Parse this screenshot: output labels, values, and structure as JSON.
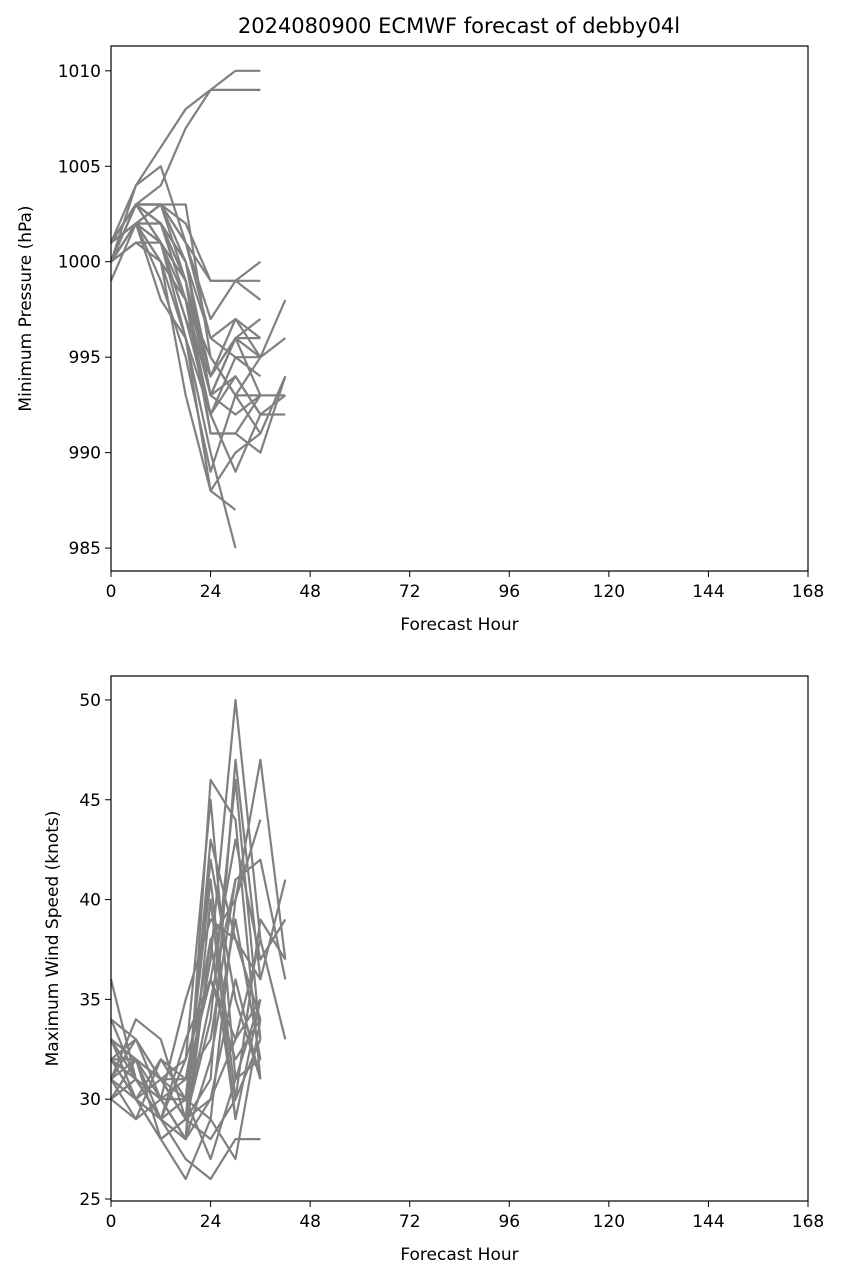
{
  "title": "2024080900 ECMWF forecast of debby04l",
  "chart_data": [
    {
      "type": "line",
      "xlabel": "Forecast Hour",
      "ylabel": "Minimum Pressure (hPa)",
      "xlim": [
        0,
        168
      ],
      "ylim": [
        983.8,
        1011.3
      ],
      "xticks": [
        0,
        24,
        48,
        72,
        96,
        120,
        144,
        168
      ],
      "yticks": [
        985,
        990,
        995,
        1000,
        1005,
        1010
      ],
      "grid": false,
      "line_color": "#808080",
      "series": [
        {
          "x": [
            0,
            6,
            12,
            18,
            24,
            30,
            36
          ],
          "y": [
            1001,
            1004,
            1006,
            1008,
            1009,
            1010,
            1010
          ]
        },
        {
          "x": [
            0,
            6,
            12,
            18,
            24,
            30,
            36
          ],
          "y": [
            1000,
            1003,
            1004,
            1007,
            1009,
            1009,
            1009
          ]
        },
        {
          "x": [
            0,
            6,
            12,
            18,
            24,
            30,
            36
          ],
          "y": [
            1000,
            1004,
            1005,
            1001,
            999,
            999,
            999
          ]
        },
        {
          "x": [
            0,
            6,
            12,
            18,
            24,
            30,
            36
          ],
          "y": [
            1001,
            1003,
            1003,
            1001,
            997,
            999,
            1000
          ]
        },
        {
          "x": [
            0,
            6,
            12,
            18,
            24,
            30,
            36
          ],
          "y": [
            1000,
            1002,
            1003,
            1002,
            999,
            999,
            998
          ]
        },
        {
          "x": [
            0,
            6,
            12,
            18,
            24,
            30,
            36,
            42
          ],
          "y": [
            1001,
            1003,
            1003,
            1001,
            996,
            997,
            995,
            998
          ]
        },
        {
          "x": [
            0,
            6,
            12,
            18,
            24,
            30,
            36,
            42
          ],
          "y": [
            1000,
            1002,
            1002,
            1000,
            994,
            996,
            995,
            996
          ]
        },
        {
          "x": [
            0,
            6,
            12,
            18,
            24,
            30,
            36,
            42
          ],
          "y": [
            1001,
            1003,
            1002,
            999,
            993,
            994,
            992,
            993
          ]
        },
        {
          "x": [
            0,
            6,
            12,
            18,
            24,
            30,
            36,
            42
          ],
          "y": [
            1000,
            1002,
            1003,
            1003,
            995,
            993,
            991,
            994
          ]
        },
        {
          "x": [
            0,
            6,
            12,
            18,
            24,
            30,
            36,
            42
          ],
          "y": [
            1001,
            1002,
            1002,
            998,
            992,
            994,
            992,
            992
          ]
        },
        {
          "x": [
            0,
            6,
            12,
            18,
            24,
            30,
            36,
            42
          ],
          "y": [
            999,
            1002,
            1001,
            999,
            993,
            996,
            993,
            993
          ]
        },
        {
          "x": [
            0,
            6,
            12,
            18,
            24,
            30,
            36,
            42
          ],
          "y": [
            1000,
            1003,
            1002,
            999,
            991,
            991,
            990,
            994
          ]
        },
        {
          "x": [
            0,
            6,
            12,
            18,
            24,
            30,
            36
          ],
          "y": [
            1001,
            1003,
            1003,
            1000,
            993,
            996,
            997
          ]
        },
        {
          "x": [
            0,
            6,
            12,
            18,
            24,
            30,
            36
          ],
          "y": [
            1000,
            1002,
            1001,
            997,
            994,
            997,
            996
          ]
        },
        {
          "x": [
            0,
            6,
            12,
            18,
            24,
            30,
            36
          ],
          "y": [
            1001,
            1003,
            1002,
            1000,
            996,
            995,
            994
          ]
        },
        {
          "x": [
            0,
            6,
            12,
            18,
            24,
            30,
            36
          ],
          "y": [
            1000,
            1002,
            998,
            996,
            992,
            995,
            995
          ]
        },
        {
          "x": [
            0,
            6,
            12,
            18,
            24,
            30,
            36
          ],
          "y": [
            1000,
            1002,
            1000,
            998,
            993,
            992,
            993
          ]
        },
        {
          "x": [
            0,
            6,
            12,
            18,
            24,
            30,
            36
          ],
          "y": [
            1001,
            1003,
            1001,
            997,
            992,
            989,
            992
          ]
        },
        {
          "x": [
            0,
            6,
            12,
            18,
            24,
            30,
            36
          ],
          "y": [
            1000,
            1001,
            1000,
            993,
            988,
            990,
            991
          ]
        },
        {
          "x": [
            0,
            6,
            12,
            18,
            24,
            30,
            36
          ],
          "y": [
            1000,
            1002,
            999,
            995,
            989,
            993,
            995
          ]
        },
        {
          "x": [
            0,
            6,
            12,
            18,
            24,
            30
          ],
          "y": [
            1001,
            1002,
            1000,
            996,
            988,
            987
          ]
        },
        {
          "x": [
            0,
            6,
            12,
            18,
            24,
            30
          ],
          "y": [
            1000,
            1001,
            1001,
            996,
            990,
            985
          ]
        },
        {
          "x": [
            0,
            6,
            12,
            18,
            24,
            30,
            36
          ],
          "y": [
            1000,
            1003,
            1002,
            998,
            991,
            991,
            993
          ]
        },
        {
          "x": [
            0,
            6,
            12,
            18,
            24,
            30,
            36
          ],
          "y": [
            1001,
            1002,
            1003,
            999,
            994,
            996,
            996
          ]
        },
        {
          "x": [
            0,
            6,
            12,
            18,
            24,
            30,
            36
          ],
          "y": [
            1000,
            1003,
            1001,
            998,
            995,
            993,
            993
          ]
        }
      ]
    },
    {
      "type": "line",
      "xlabel": "Forecast Hour",
      "ylabel": "Maximum Wind Speed (knots)",
      "xlim": [
        0,
        168
      ],
      "ylim": [
        24.9,
        51.2
      ],
      "xticks": [
        0,
        24,
        48,
        72,
        96,
        120,
        144,
        168
      ],
      "yticks": [
        25,
        30,
        35,
        40,
        45,
        50
      ],
      "grid": false,
      "line_color": "#808080",
      "series": [
        {
          "x": [
            0,
            6,
            12,
            18,
            24,
            30,
            36
          ],
          "y": [
            36,
            31,
            29,
            28,
            46,
            44,
            31
          ]
        },
        {
          "x": [
            0,
            6,
            12,
            18,
            24,
            30,
            36
          ],
          "y": [
            34,
            33,
            31,
            29,
            43,
            38,
            34
          ]
        },
        {
          "x": [
            0,
            6,
            12,
            18,
            24,
            30,
            36
          ],
          "y": [
            32,
            30,
            29,
            30,
            37,
            50,
            38
          ]
        },
        {
          "x": [
            0,
            6,
            12,
            18,
            24,
            30,
            36
          ],
          "y": [
            31,
            34,
            33,
            29,
            31,
            47,
            36
          ]
        },
        {
          "x": [
            0,
            6,
            12,
            18,
            24,
            30,
            36,
            42
          ],
          "y": [
            33,
            32,
            28,
            26,
            29,
            40,
            47,
            37
          ]
        },
        {
          "x": [
            0,
            6,
            12,
            18,
            24,
            30,
            36,
            42
          ],
          "y": [
            30,
            31,
            30,
            35,
            39,
            38,
            36,
            41
          ]
        },
        {
          "x": [
            0,
            6,
            12,
            18,
            24,
            30,
            36,
            42
          ],
          "y": [
            31,
            29,
            32,
            31,
            36,
            43,
            37,
            39
          ]
        },
        {
          "x": [
            0,
            6,
            12,
            18,
            24,
            30,
            36,
            42
          ],
          "y": [
            32,
            33,
            30,
            28,
            30,
            33,
            38,
            33
          ]
        },
        {
          "x": [
            0,
            6,
            12,
            18,
            24,
            30,
            36,
            42
          ],
          "y": [
            30,
            32,
            31,
            29,
            35,
            41,
            42,
            36
          ]
        },
        {
          "x": [
            0,
            6,
            12,
            18,
            24,
            30,
            36,
            42
          ],
          "y": [
            33,
            31,
            29,
            30,
            41,
            30,
            39,
            37
          ]
        },
        {
          "x": [
            0,
            6,
            12,
            18,
            24,
            30,
            36
          ],
          "y": [
            31,
            30,
            31,
            32,
            45,
            31,
            32
          ]
        },
        {
          "x": [
            0,
            6,
            12,
            18,
            24,
            30,
            36
          ],
          "y": [
            32,
            32,
            30,
            28,
            40,
            29,
            35
          ]
        },
        {
          "x": [
            0,
            6,
            12,
            18,
            24,
            30,
            36
          ],
          "y": [
            30,
            31,
            29,
            27,
            26,
            28,
            28
          ]
        },
        {
          "x": [
            0,
            6,
            12,
            18,
            24,
            30,
            36
          ],
          "y": [
            33,
            30,
            28,
            29,
            34,
            46,
            33
          ]
        },
        {
          "x": [
            0,
            6,
            12,
            18,
            24,
            30,
            36
          ],
          "y": [
            31,
            33,
            31,
            31,
            38,
            40,
            44
          ]
        },
        {
          "x": [
            0,
            6,
            12,
            18,
            24,
            30,
            36
          ],
          "y": [
            32,
            30,
            32,
            30,
            42,
            35,
            31
          ]
        },
        {
          "x": [
            0,
            6,
            12,
            18,
            24,
            30,
            36
          ],
          "y": [
            30,
            29,
            30,
            30,
            29,
            27,
            34
          ]
        },
        {
          "x": [
            0,
            6,
            12,
            18,
            24,
            30,
            36
          ],
          "y": [
            31,
            32,
            29,
            33,
            36,
            33,
            35
          ]
        },
        {
          "x": [
            0,
            6,
            12,
            18,
            24,
            30,
            36
          ],
          "y": [
            32,
            31,
            30,
            28,
            32,
            39,
            32
          ]
        },
        {
          "x": [
            0,
            6,
            12,
            18,
            24,
            30,
            36
          ],
          "y": [
            33,
            32,
            31,
            30,
            27,
            31,
            35
          ]
        },
        {
          "x": [
            0,
            6,
            12,
            18,
            24,
            30
          ],
          "y": [
            31,
            30,
            29,
            28,
            38,
            29
          ]
        },
        {
          "x": [
            0,
            6,
            12,
            18,
            24,
            30
          ],
          "y": [
            32,
            31,
            30,
            31,
            33,
            41
          ]
        },
        {
          "x": [
            0,
            6,
            12,
            18,
            24,
            30,
            36
          ],
          "y": [
            30,
            32,
            31,
            29,
            28,
            30,
            33
          ]
        },
        {
          "x": [
            0,
            6,
            12,
            18,
            24,
            30,
            36
          ],
          "y": [
            34,
            31,
            29,
            32,
            36,
            32,
            34
          ]
        },
        {
          "x": [
            0,
            6,
            12,
            18,
            24,
            30,
            36
          ],
          "y": [
            32,
            30,
            28,
            29,
            30,
            36,
            31
          ]
        }
      ]
    }
  ]
}
